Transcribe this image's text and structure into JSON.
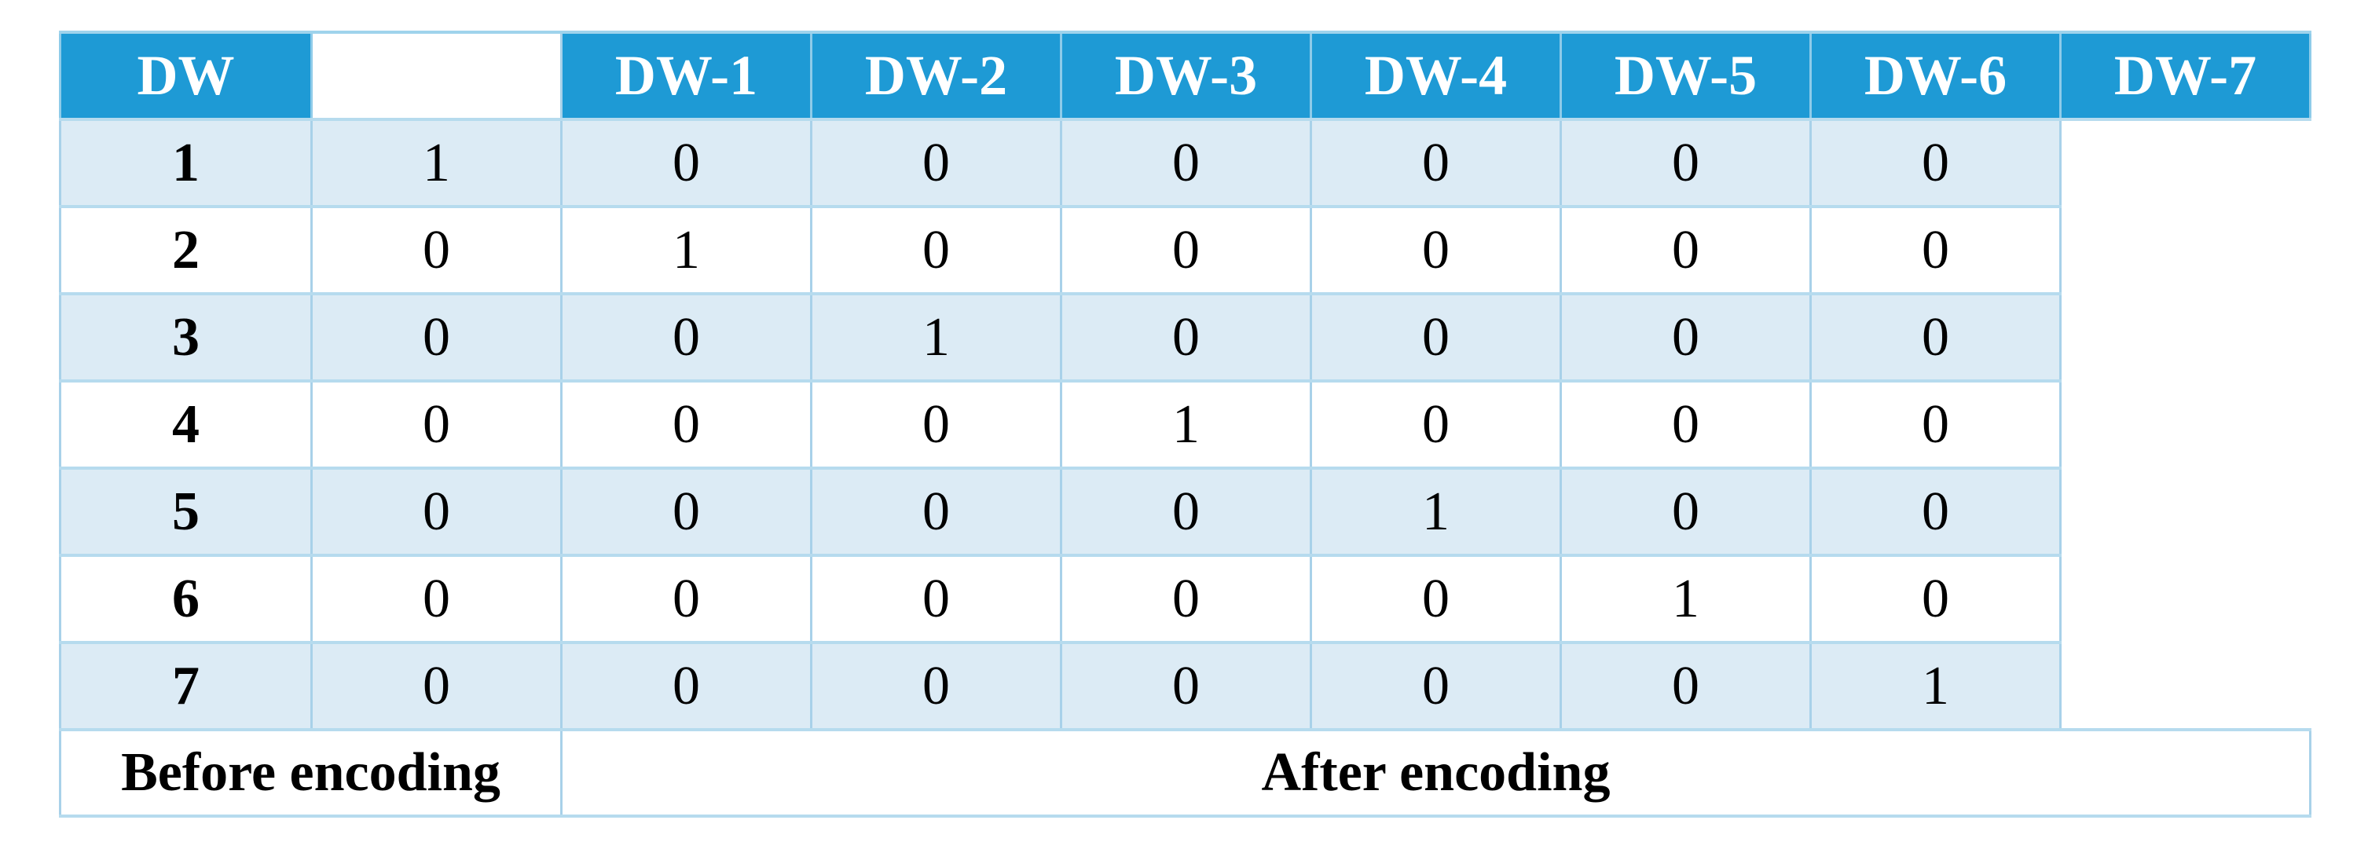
{
  "table": {
    "corner_header": "DW",
    "gap_column": "",
    "column_headers": [
      "DW-1",
      "DW-2",
      "DW-3",
      "DW-4",
      "DW-5",
      "DW-6",
      "DW-7"
    ],
    "rows": [
      {
        "label": "1",
        "values": [
          "1",
          "0",
          "0",
          "0",
          "0",
          "0",
          "0"
        ]
      },
      {
        "label": "2",
        "values": [
          "0",
          "1",
          "0",
          "0",
          "0",
          "0",
          "0"
        ]
      },
      {
        "label": "3",
        "values": [
          "0",
          "0",
          "1",
          "0",
          "0",
          "0",
          "0"
        ]
      },
      {
        "label": "4",
        "values": [
          "0",
          "0",
          "0",
          "1",
          "0",
          "0",
          "0"
        ]
      },
      {
        "label": "5",
        "values": [
          "0",
          "0",
          "0",
          "0",
          "1",
          "0",
          "0"
        ]
      },
      {
        "label": "6",
        "values": [
          "0",
          "0",
          "0",
          "0",
          "0",
          "1",
          "0"
        ]
      },
      {
        "label": "7",
        "values": [
          "0",
          "0",
          "0",
          "0",
          "0",
          "0",
          "1"
        ]
      }
    ],
    "footer": {
      "before": "Before encoding",
      "after": "After encoding"
    }
  },
  "colors": {
    "header_bg": "#1e9ad5",
    "header_text": "#ffffff",
    "stripe_bg": "#dcebf5",
    "row_bg": "#ffffff",
    "border_horizontal": "#b6dbee",
    "border_vertical": "#a8d1e9",
    "body_text": "#000000"
  },
  "chart_data": {
    "type": "table",
    "columns": [
      "DW",
      "DW-1",
      "DW-2",
      "DW-3",
      "DW-4",
      "DW-5",
      "DW-6",
      "DW-7"
    ],
    "rows": [
      [
        1,
        1,
        0,
        0,
        0,
        0,
        0,
        0
      ],
      [
        2,
        0,
        1,
        0,
        0,
        0,
        0,
        0
      ],
      [
        3,
        0,
        0,
        1,
        0,
        0,
        0,
        0
      ],
      [
        4,
        0,
        0,
        0,
        1,
        0,
        0,
        0
      ],
      [
        5,
        0,
        0,
        0,
        0,
        1,
        0,
        0
      ],
      [
        6,
        0,
        0,
        0,
        0,
        0,
        1,
        0
      ],
      [
        7,
        0,
        0,
        0,
        0,
        0,
        0,
        1
      ]
    ],
    "footer_labels": [
      "Before encoding",
      "After encoding"
    ]
  }
}
